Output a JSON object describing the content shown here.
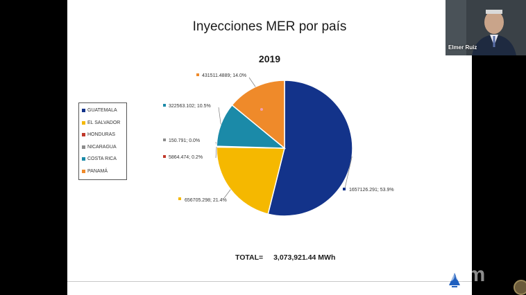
{
  "slide": {
    "title": "Inyecciones MER por país",
    "year": "2019",
    "total_label": "TOTAL=",
    "total_value": "3,073,921.44 MWh"
  },
  "chart_data": {
    "type": "pie",
    "title": "2019",
    "legend_position": "left",
    "slices": [
      {
        "name": "GUATEMALA",
        "value": 1657126.291,
        "percent": 53.9,
        "label": "1657126.291; 53.9%",
        "color": "#13338a"
      },
      {
        "name": "EL SALVADOR",
        "value": 656705.298,
        "percent": 21.4,
        "label": "656705.298; 21.4%",
        "color": "#f5b800"
      },
      {
        "name": "HONDURAS",
        "value": 5864.474,
        "percent": 0.2,
        "label": "5864.474; 0.2%",
        "color": "#c0392b"
      },
      {
        "name": "NICARAGUA",
        "value": 150.791,
        "percent": 0.0,
        "label": "150.791; 0.0%",
        "color": "#8c8c8c"
      },
      {
        "name": "COSTA RICA",
        "value": 322563.102,
        "percent": 10.5,
        "label": "322563.102; 10.5%",
        "color": "#1b8aa8"
      },
      {
        "name": "PANAMÁ",
        "value": 431511.4889,
        "percent": 14.0,
        "label": "431511.4889; 14.0%",
        "color": "#ef8a2a"
      }
    ]
  },
  "participant": {
    "name": "Elmer Ruiz"
  },
  "watermark": "zoom"
}
